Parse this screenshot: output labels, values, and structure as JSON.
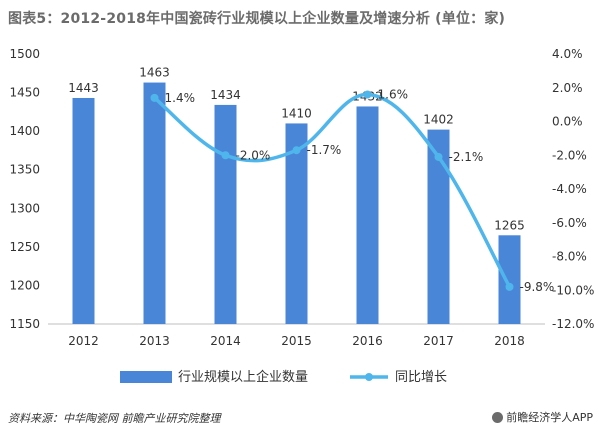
{
  "chart_data": {
    "type": "bar+line",
    "title": "图表5：2012-2018年中国瓷砖行业规模以上企业数量及增速分析 (单位：家)",
    "categories": [
      "2012",
      "2013",
      "2014",
      "2015",
      "2016",
      "2017",
      "2018"
    ],
    "series": [
      {
        "name": "行业规模以上企业数量",
        "type": "bar",
        "axis": "left",
        "values": [
          1443,
          1463,
          1434,
          1410,
          1432,
          1402,
          1265
        ],
        "labels": [
          "1443",
          "1463",
          "1434",
          "1410",
          "1432",
          "1402",
          "1265"
        ]
      },
      {
        "name": "同比增长",
        "type": "line",
        "axis": "right",
        "values": [
          null,
          1.4,
          -2.0,
          -1.7,
          1.6,
          -2.1,
          -9.8
        ],
        "labels": [
          "",
          "1.4%",
          "-2.0%",
          "-1.7%",
          "1.6%",
          "-2.1%",
          "-9.8%"
        ]
      }
    ],
    "yleft": {
      "min": 1150,
      "max": 1500,
      "step": 50,
      "ticks": [
        "1150",
        "1200",
        "1250",
        "1300",
        "1350",
        "1400",
        "1450",
        "1500"
      ]
    },
    "yright": {
      "min": -12,
      "max": 4,
      "step": 2,
      "ticks": [
        "-12.0%",
        "-10.0%",
        "-8.0%",
        "-6.0%",
        "-4.0%",
        "-2.0%",
        "0.0%",
        "2.0%",
        "4.0%"
      ]
    },
    "grid": false,
    "legend": "bottom",
    "colors": {
      "bar": "#4a86d8",
      "line": "#4fb6ec",
      "text": "#333333",
      "axis": "#bfbfbf"
    }
  },
  "footer": {
    "source": "资料来源：中华陶瓷网 前瞻产业研究院整理",
    "brand": "前瞻经济学人APP"
  }
}
